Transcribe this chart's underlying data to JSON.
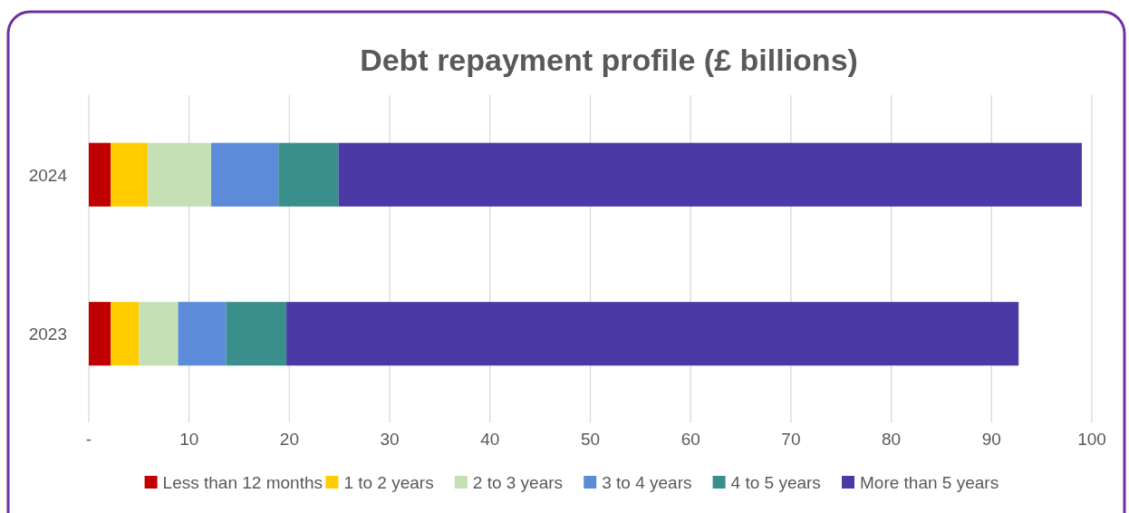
{
  "chart_data": {
    "type": "bar",
    "orientation": "horizontal",
    "stacked": true,
    "title": "Debt repayment profile (£ billions)",
    "categories": [
      "2024",
      "2023"
    ],
    "series": [
      {
        "name": "Less than 12 months",
        "color": "#c00000",
        "values": [
          2.2,
          2.2
        ]
      },
      {
        "name": "1 to 2 years",
        "color": "#ffcc00",
        "values": [
          3.7,
          2.8
        ]
      },
      {
        "name": "2 to 3 years",
        "color": "#c5e0b4",
        "values": [
          6.3,
          3.9
        ]
      },
      {
        "name": "3 to 4 years",
        "color": "#5b8bd9",
        "values": [
          6.7,
          4.8
        ]
      },
      {
        "name": "4 to 5 years",
        "color": "#3a8f8c",
        "values": [
          6.0,
          6.0
        ]
      },
      {
        "name": "More than 5 years",
        "color": "#4b3aa6",
        "values": [
          74.1,
          73.0
        ]
      }
    ],
    "xlim": [
      0,
      100
    ],
    "xticks": [
      {
        "value": 0,
        "label": "-"
      },
      10,
      20,
      30,
      40,
      50,
      60,
      70,
      80,
      90,
      100
    ],
    "grid": "x",
    "legend": "bottom"
  }
}
